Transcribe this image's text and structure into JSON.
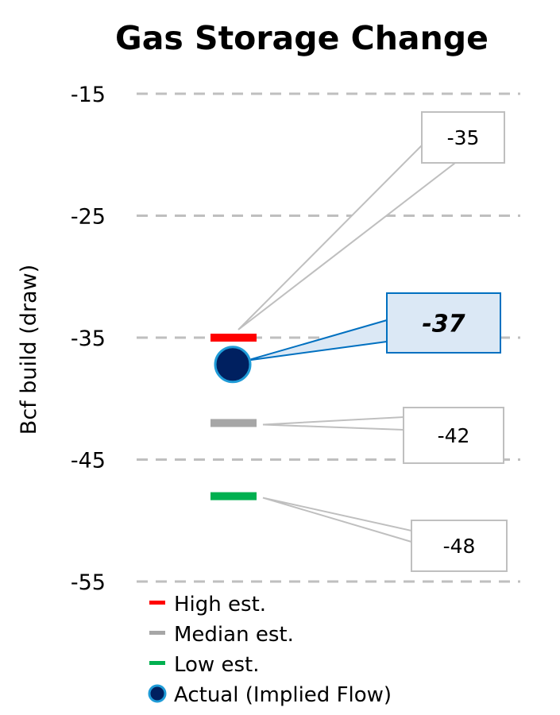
{
  "chart_data": {
    "type": "scatter",
    "title": "Gas Storage Change",
    "ylabel": "Bcf build (draw)",
    "ylim": [
      -55,
      -15
    ],
    "yticks": [
      -15,
      -25,
      -35,
      -45,
      -55
    ],
    "grid": true,
    "legend_position": "bottom",
    "series": [
      {
        "name": "High est.",
        "marker": "dash",
        "color": "#ff0000",
        "value": -35,
        "label": "-35"
      },
      {
        "name": "Median est.",
        "marker": "dash",
        "color": "#a6a6a6",
        "value": -42,
        "label": "-42"
      },
      {
        "name": "Low est.",
        "marker": "dash",
        "color": "#00b050",
        "value": -48,
        "label": "-48"
      },
      {
        "name": "Actual (Implied Flow)",
        "marker": "circle",
        "color": "#002060",
        "edge_color": "#1f9bd7",
        "value": -37,
        "label": "-37"
      }
    ]
  }
}
